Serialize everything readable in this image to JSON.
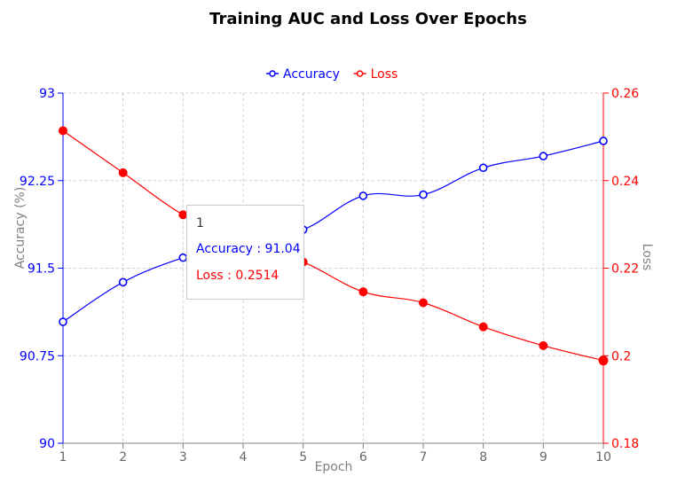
{
  "chart_data": {
    "type": "line",
    "title": "Training AUC and Loss Over Epochs",
    "xlabel": "Epoch",
    "x": [
      1,
      2,
      3,
      4,
      5,
      6,
      7,
      8,
      9,
      10
    ],
    "x_ticks": [
      "1",
      "2",
      "3",
      "4",
      "5",
      "6",
      "7",
      "8",
      "9",
      "10"
    ],
    "left_axis": {
      "label": "Accuracy (%)",
      "range": [
        90,
        93
      ],
      "ticks": [
        "90",
        "90.75",
        "91.5",
        "92.25",
        "93"
      ],
      "color": "#0000ff"
    },
    "right_axis": {
      "label": "Loss",
      "range": [
        0.18,
        0.26
      ],
      "ticks": [
        "0.18",
        "0.2",
        "0.22",
        "0.24",
        "0.26"
      ],
      "color": "#ff0000"
    },
    "grid": true,
    "legend_position": "top-center",
    "series": [
      {
        "name": "Accuracy",
        "axis": "left",
        "color": "#0000ff",
        "marker": "hollow-circle",
        "values": [
          91.04,
          91.38,
          91.59,
          91.73,
          91.83,
          92.12,
          92.13,
          92.36,
          92.46,
          92.59
        ]
      },
      {
        "name": "Loss",
        "axis": "right",
        "color": "#ff0000",
        "marker": "filled-circle",
        "values": [
          0.2514,
          0.2418,
          0.2322,
          0.2258,
          0.2214,
          0.2146,
          0.2121,
          0.2066,
          0.2023,
          0.1989
        ]
      }
    ],
    "tooltip": {
      "title": "1",
      "rows": [
        {
          "name": "Accuracy",
          "value": "91.04",
          "color": "#0000ff"
        },
        {
          "name": "Loss",
          "value": "0.2514",
          "color": "#ff0000"
        }
      ]
    }
  }
}
